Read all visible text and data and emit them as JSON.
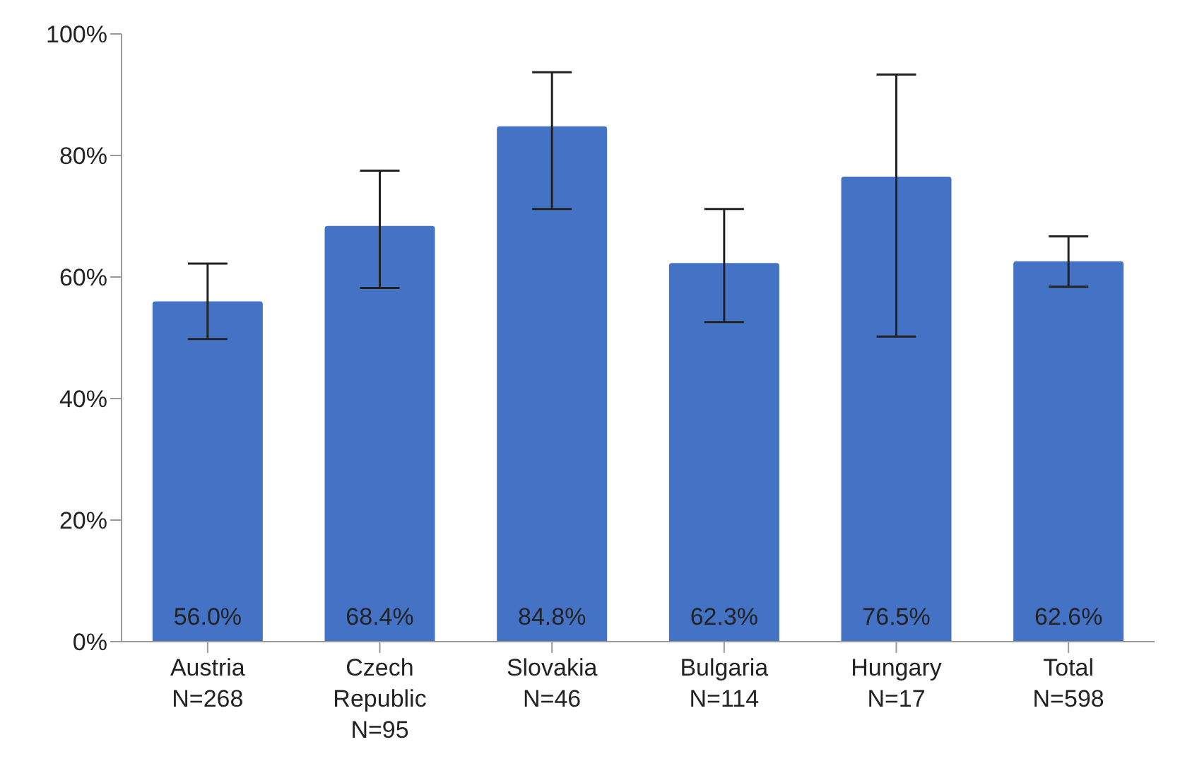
{
  "chart_data": {
    "type": "bar",
    "categories": [
      "Austria\nN=268",
      "Czech Republic\nN=95",
      "Slovakia\nN=46",
      "Bulgaria\nN=114",
      "Hungary\nN=17",
      "Total\nN=598"
    ],
    "values": [
      56.0,
      68.4,
      84.8,
      62.3,
      76.5,
      62.6
    ],
    "value_labels": [
      "56.0%",
      "68.4%",
      "84.8%",
      "62.3%",
      "76.5%",
      "62.6%"
    ],
    "errors": [
      [
        49.8,
        62.2
      ],
      [
        58.2,
        77.5
      ],
      [
        71.2,
        93.7
      ],
      [
        52.6,
        71.2
      ],
      [
        50.2,
        93.3
      ],
      [
        58.4,
        66.7
      ]
    ],
    "color": "#4472c4",
    "ylim": [
      0,
      100
    ],
    "yticks": [
      {
        "value": 0,
        "label": "0%"
      },
      {
        "value": 20,
        "label": "20%"
      },
      {
        "value": 40,
        "label": "40%"
      },
      {
        "value": 60,
        "label": "60%"
      },
      {
        "value": 80,
        "label": "80%"
      },
      {
        "value": 100,
        "label": "100%"
      }
    ],
    "grid": false,
    "legend": false
  }
}
